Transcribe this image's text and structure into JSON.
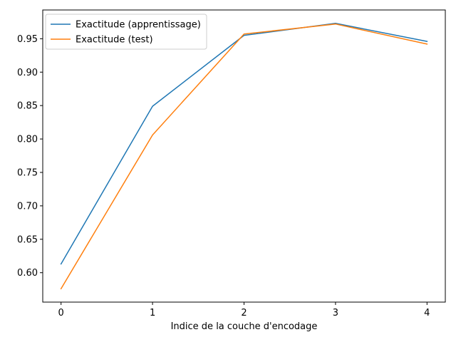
{
  "chart_data": {
    "type": "line",
    "title": "",
    "xlabel": "Indice de la couche d'encodage",
    "ylabel": "",
    "x": [
      0,
      1,
      2,
      3,
      4
    ],
    "series": [
      {
        "name": "Exactitude (apprentissage)",
        "color": "#1f77b4",
        "values": [
          0.613,
          0.849,
          0.955,
          0.973,
          0.946
        ]
      },
      {
        "name": "Exactitude (test)",
        "color": "#ff7f0e",
        "values": [
          0.576,
          0.806,
          0.957,
          0.972,
          0.942
        ]
      }
    ],
    "xlim": [
      -0.2,
      4.2
    ],
    "ylim": [
      0.556,
      0.993
    ],
    "xticks": [
      0,
      1,
      2,
      3,
      4
    ],
    "xtick_labels": [
      "0",
      "1",
      "2",
      "3",
      "4"
    ],
    "yticks": [
      0.6,
      0.65,
      0.7,
      0.75,
      0.8,
      0.85,
      0.9,
      0.95
    ],
    "ytick_labels": [
      "0.60",
      "0.65",
      "0.70",
      "0.75",
      "0.80",
      "0.85",
      "0.90",
      "0.95"
    ],
    "grid": false,
    "legend_position": "top-left"
  }
}
